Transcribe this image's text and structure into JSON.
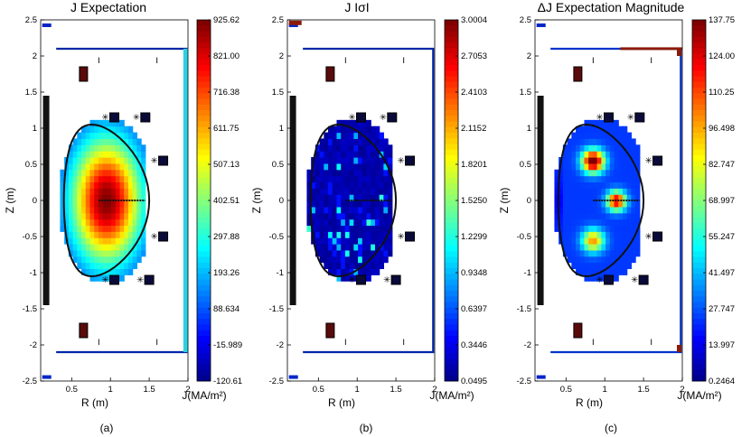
{
  "figure_labels": [
    "(a)",
    "(b)",
    "(c)"
  ],
  "chart_data": [
    {
      "type": "heatmap",
      "title": "J Expectation",
      "xlabel": "R (m)",
      "ylabel": "Z (m)",
      "xlim": [
        0.1,
        2.0
      ],
      "ylim": [
        -2.5,
        2.5
      ],
      "x_ticks": [
        "0.5",
        "1",
        "1.5",
        "2"
      ],
      "y_ticks": [
        "-2.5",
        "-2",
        "-1.5",
        "-1",
        "-0.5",
        "0",
        "0.5",
        "1",
        "1.5",
        "2",
        "2.5"
      ],
      "colorbar_label": "J(MA/m²)",
      "colorbar_range": [
        -120.61,
        925.62
      ],
      "colorbar_ticks": [
        "925.62",
        "821.00",
        "716.38",
        "611.75",
        "507.13",
        "402.51",
        "297.88",
        "193.26",
        "88.634",
        "-15.989",
        "-120.61"
      ],
      "pattern": "central peak"
    },
    {
      "type": "heatmap",
      "title": "J IσI",
      "xlabel": "R (m)",
      "ylabel": "Z (m)",
      "xlim": [
        0.1,
        2.0
      ],
      "ylim": [
        -2.5,
        2.5
      ],
      "x_ticks": [
        "0.5",
        "1",
        "1.5",
        "2"
      ],
      "y_ticks": [
        "-2.5",
        "-2",
        "-1.5",
        "-1",
        "-0.5",
        "0",
        "0.5",
        "1",
        "1.5",
        "2",
        "2.5"
      ],
      "colorbar_label": "J(MA/m²)",
      "colorbar_range": [
        0.0495,
        3.0004
      ],
      "colorbar_ticks": [
        "3.0004",
        "2.7053",
        "2.4103",
        "2.1152",
        "1.8201",
        "1.5250",
        "1.2299",
        "0.9348",
        "0.6397",
        "0.3446",
        "0.0495"
      ],
      "pattern": "sparse noise"
    },
    {
      "type": "heatmap",
      "title": "ΔJ Expectation Magnitude",
      "xlabel": "R (m)",
      "ylabel": "Z (m)",
      "xlim": [
        0.1,
        2.0
      ],
      "ylim": [
        -2.5,
        2.5
      ],
      "x_ticks": [
        "0.5",
        "1",
        "1.5",
        "2"
      ],
      "y_ticks": [
        "-2.5",
        "-2",
        "-1.5",
        "-1",
        "-0.5",
        "0",
        "0.5",
        "1",
        "1.5",
        "2",
        "2.5"
      ],
      "colorbar_label": "J(MA/m²)",
      "colorbar_range": [
        0.2464,
        137.75
      ],
      "colorbar_ticks": [
        "137.75",
        "124.00",
        "110.25",
        "96.498",
        "82.747",
        "68.997",
        "55.247",
        "41.497",
        "27.747",
        "13.997",
        "0.2464"
      ],
      "pattern": "hot spots"
    }
  ]
}
